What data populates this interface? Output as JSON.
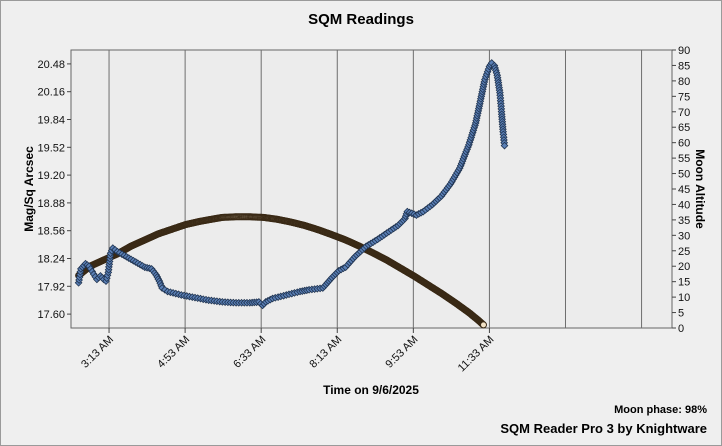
{
  "chart_data": {
    "type": "scatter",
    "title": "SQM Readings",
    "xlabel": "Time on 9/6/2025",
    "ylabel": "Mag/Sq Arcsec",
    "y2label": "Moon Altitude",
    "x_ticks": [
      "3:13 AM",
      "4:53 AM",
      "6:33 AM",
      "8:13 AM",
      "9:53 AM",
      "11:33 AM"
    ],
    "x_tick_hours": [
      3.2167,
      4.8833,
      6.55,
      8.2167,
      9.8833,
      11.55
    ],
    "xlim_hours": [
      2.3833,
      15.55
    ],
    "y_ticks": [
      "17.60",
      "17.92",
      "18.24",
      "18.56",
      "18.88",
      "19.20",
      "19.52",
      "19.84",
      "20.16",
      "20.48"
    ],
    "ylim": [
      17.44,
      20.64
    ],
    "y2_ticks": [
      0,
      5,
      10,
      15,
      20,
      25,
      30,
      35,
      40,
      45,
      50,
      55,
      60,
      65,
      70,
      75,
      80,
      85,
      90
    ],
    "y2lim": [
      0,
      90
    ],
    "grid": true,
    "series": [
      {
        "type": "sqm",
        "marker": "diamond",
        "color": "#5a7fb5",
        "points": [
          [
            2.55,
            17.96
          ],
          [
            2.6,
            18.12
          ],
          [
            2.7,
            18.18
          ],
          [
            2.78,
            18.15
          ],
          [
            2.88,
            18.06
          ],
          [
            2.95,
            18.0
          ],
          [
            3.03,
            18.04
          ],
          [
            3.1,
            18.0
          ],
          [
            3.15,
            17.98
          ],
          [
            3.2,
            18.08
          ],
          [
            3.25,
            18.3
          ],
          [
            3.3,
            18.36
          ],
          [
            3.4,
            18.32
          ],
          [
            3.6,
            18.26
          ],
          [
            3.8,
            18.2
          ],
          [
            4.0,
            18.14
          ],
          [
            4.15,
            18.12
          ],
          [
            4.25,
            18.05
          ],
          [
            4.32,
            17.98
          ],
          [
            4.38,
            17.9
          ],
          [
            4.5,
            17.86
          ],
          [
            4.8,
            17.82
          ],
          [
            5.1,
            17.79
          ],
          [
            5.4,
            17.76
          ],
          [
            5.7,
            17.74
          ],
          [
            6.0,
            17.73
          ],
          [
            6.3,
            17.73
          ],
          [
            6.5,
            17.74
          ],
          [
            6.58,
            17.7
          ],
          [
            6.65,
            17.74
          ],
          [
            6.8,
            17.78
          ],
          [
            7.1,
            17.82
          ],
          [
            7.4,
            17.86
          ],
          [
            7.6,
            17.88
          ],
          [
            7.9,
            17.9
          ],
          [
            8.0,
            17.96
          ],
          [
            8.1,
            18.02
          ],
          [
            8.25,
            18.1
          ],
          [
            8.4,
            18.14
          ],
          [
            8.45,
            18.17
          ],
          [
            8.6,
            18.26
          ],
          [
            8.85,
            18.38
          ],
          [
            9.1,
            18.46
          ],
          [
            9.35,
            18.55
          ],
          [
            9.55,
            18.62
          ],
          [
            9.7,
            18.7
          ],
          [
            9.75,
            18.78
          ],
          [
            9.85,
            18.76
          ],
          [
            9.95,
            18.74
          ],
          [
            10.1,
            18.78
          ],
          [
            10.3,
            18.86
          ],
          [
            10.5,
            18.96
          ],
          [
            10.7,
            19.1
          ],
          [
            10.9,
            19.28
          ],
          [
            11.1,
            19.55
          ],
          [
            11.25,
            19.8
          ],
          [
            11.35,
            20.05
          ],
          [
            11.45,
            20.3
          ],
          [
            11.55,
            20.45
          ],
          [
            11.6,
            20.49
          ],
          [
            11.66,
            20.46
          ],
          [
            11.72,
            20.35
          ],
          [
            11.78,
            20.15
          ],
          [
            11.82,
            19.9
          ],
          [
            11.85,
            19.7
          ],
          [
            11.88,
            19.54
          ]
        ]
      },
      {
        "type": "moon",
        "marker": "dot",
        "color": "#f2e2c6",
        "outline": "#3a2a16",
        "points": [
          [
            2.55,
            17
          ],
          [
            2.8,
            20
          ],
          [
            3.1,
            22
          ],
          [
            3.4,
            24
          ],
          [
            3.7,
            26.5
          ],
          [
            4.0,
            28.5
          ],
          [
            4.3,
            30.5
          ],
          [
            4.6,
            32
          ],
          [
            4.9,
            33.5
          ],
          [
            5.2,
            34.5
          ],
          [
            5.5,
            35.3
          ],
          [
            5.7,
            35.8
          ],
          [
            6.0,
            36
          ],
          [
            6.3,
            36
          ],
          [
            6.6,
            35.8
          ],
          [
            6.9,
            35.2
          ],
          [
            7.2,
            34.3
          ],
          [
            7.5,
            33.2
          ],
          [
            7.8,
            31.8
          ],
          [
            8.1,
            30.2
          ],
          [
            8.4,
            28.5
          ],
          [
            8.7,
            26.5
          ],
          [
            9.0,
            24.3
          ],
          [
            9.3,
            22
          ],
          [
            9.6,
            19.4
          ],
          [
            9.9,
            16.8
          ],
          [
            10.2,
            14
          ],
          [
            10.5,
            11.2
          ],
          [
            10.8,
            8.2
          ],
          [
            11.1,
            5
          ],
          [
            11.3,
            2.6
          ],
          [
            11.42,
            1
          ]
        ]
      }
    ],
    "moon_phase_label": "Moon phase: 98%"
  },
  "footer": {
    "credit": "SQM Reader Pro 3 by Knightware"
  }
}
